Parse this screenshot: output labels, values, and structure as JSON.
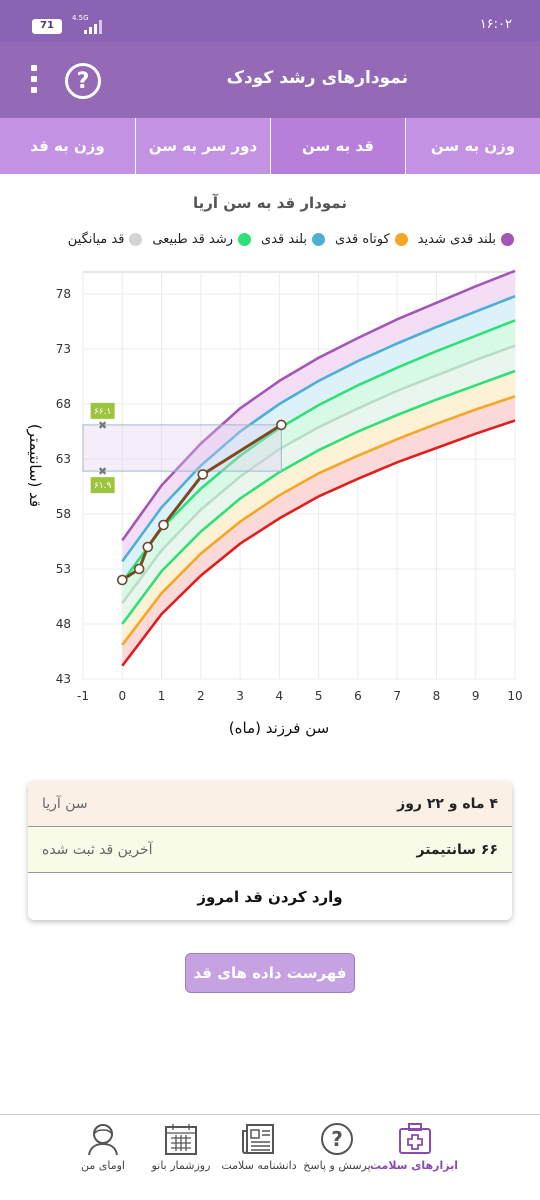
{
  "status": {
    "time": "۱۶:۰۲",
    "battery": "71",
    "network": "4.5G"
  },
  "header": {
    "title": "نمودارهای رشد کودک",
    "help_label": "?"
  },
  "tabs": [
    {
      "label": "وزن به سن"
    },
    {
      "label": "قد به سن"
    },
    {
      "label": "دور سر به سن"
    },
    {
      "label": "وزن به قد"
    }
  ],
  "chart_title": "نمودار قد به سن آریا",
  "legend": [
    {
      "label": "بلند قدی شدید",
      "color": "#a356b5"
    },
    {
      "label": "کوتاه قدی",
      "color": "#f5a623"
    },
    {
      "label": "بلند قدی",
      "color": "#4ab0d4"
    },
    {
      "label": "رشد قد طبیعی",
      "color": "#2ee07a"
    },
    {
      "label": "قد میانگین",
      "color": "#d4d4d4"
    }
  ],
  "chart_data": {
    "type": "line",
    "xlabel": "سن فرزند (ماه)",
    "ylabel": "قد (سانتیمتر)",
    "xlim": [
      -1,
      10
    ],
    "ylim": [
      43,
      80
    ],
    "xticks": [
      -1,
      0,
      1,
      2,
      3,
      4,
      5,
      6,
      7,
      8,
      9,
      10
    ],
    "yticks": [
      43,
      48,
      53,
      58,
      63,
      68,
      73,
      78
    ],
    "x": [
      0,
      1,
      2,
      3,
      4,
      5,
      6,
      7,
      8,
      9,
      10
    ],
    "curves": [
      {
        "name": "severe_tall",
        "color": "#a356b5",
        "values": [
          55.6,
          60.6,
          64.4,
          67.6,
          70.1,
          72.2,
          74.0,
          75.7,
          77.2,
          78.7,
          80.1
        ]
      },
      {
        "name": "tall",
        "color": "#4ab0d4",
        "values": [
          53.7,
          58.6,
          62.4,
          65.5,
          68.0,
          70.1,
          71.9,
          73.5,
          75.0,
          76.4,
          77.8
        ]
      },
      {
        "name": "normal_upper",
        "color": "#2ee07a",
        "values": [
          51.8,
          56.7,
          60.3,
          63.3,
          65.8,
          67.9,
          69.7,
          71.3,
          72.8,
          74.2,
          75.6
        ]
      },
      {
        "name": "median",
        "color": "#b9dcc8",
        "values": [
          49.9,
          54.7,
          58.4,
          61.4,
          63.9,
          65.9,
          67.6,
          69.2,
          70.6,
          72.0,
          73.3
        ]
      },
      {
        "name": "normal_lower",
        "color": "#2ee07a",
        "values": [
          48.0,
          52.8,
          56.4,
          59.4,
          61.8,
          63.8,
          65.5,
          67.0,
          68.4,
          69.7,
          71.0
        ]
      },
      {
        "name": "short",
        "color": "#f5a623",
        "values": [
          46.1,
          50.8,
          54.4,
          57.3,
          59.7,
          61.7,
          63.3,
          64.8,
          66.2,
          67.5,
          68.7
        ]
      },
      {
        "name": "severe_short",
        "color": "#e01e1e",
        "values": [
          44.2,
          48.9,
          52.4,
          55.3,
          57.6,
          59.6,
          61.2,
          62.7,
          64.0,
          65.3,
          66.5
        ]
      }
    ],
    "bands": [
      {
        "color": "#f3def6"
      },
      {
        "color": "#dcf1f8"
      },
      {
        "color": "#d9f9e7"
      },
      {
        "color": "#e9f6ee"
      },
      {
        "color": "#fdf1d6"
      },
      {
        "color": "#fbd9d9"
      }
    ],
    "child_series": {
      "x": [
        0,
        0.43,
        0.65,
        1.05,
        2.05,
        4.05
      ],
      "y": [
        52,
        53,
        55,
        57,
        61.6,
        66.1
      ],
      "color": "#7b4a1e"
    },
    "range_box": {
      "x": [
        -1,
        4.05
      ],
      "y": [
        61.9,
        66.1
      ],
      "labels": [
        "۶۶.۱",
        "۶۱.۹"
      ]
    }
  },
  "info": {
    "age_label": "سن آریا",
    "age_value": "۴ ماه و ۲۲ روز",
    "last_label": "آخرین قد ثبت شده",
    "last_value": "۶۶ سانتیمتر",
    "action_label": "وارد کردن قد امروز"
  },
  "list_button": "فهرست داده های قد آریا",
  "nav": [
    {
      "label": "ابزارهای سلامت",
      "icon": "medical-kit-icon"
    },
    {
      "label": "پرسش و پاسخ",
      "icon": "question-icon"
    },
    {
      "label": "دانشنامه سلامت",
      "icon": "newspaper-icon"
    },
    {
      "label": "روزشمار بانو",
      "icon": "calendar-icon"
    },
    {
      "label": "اومای من",
      "icon": "profile-icon"
    }
  ]
}
